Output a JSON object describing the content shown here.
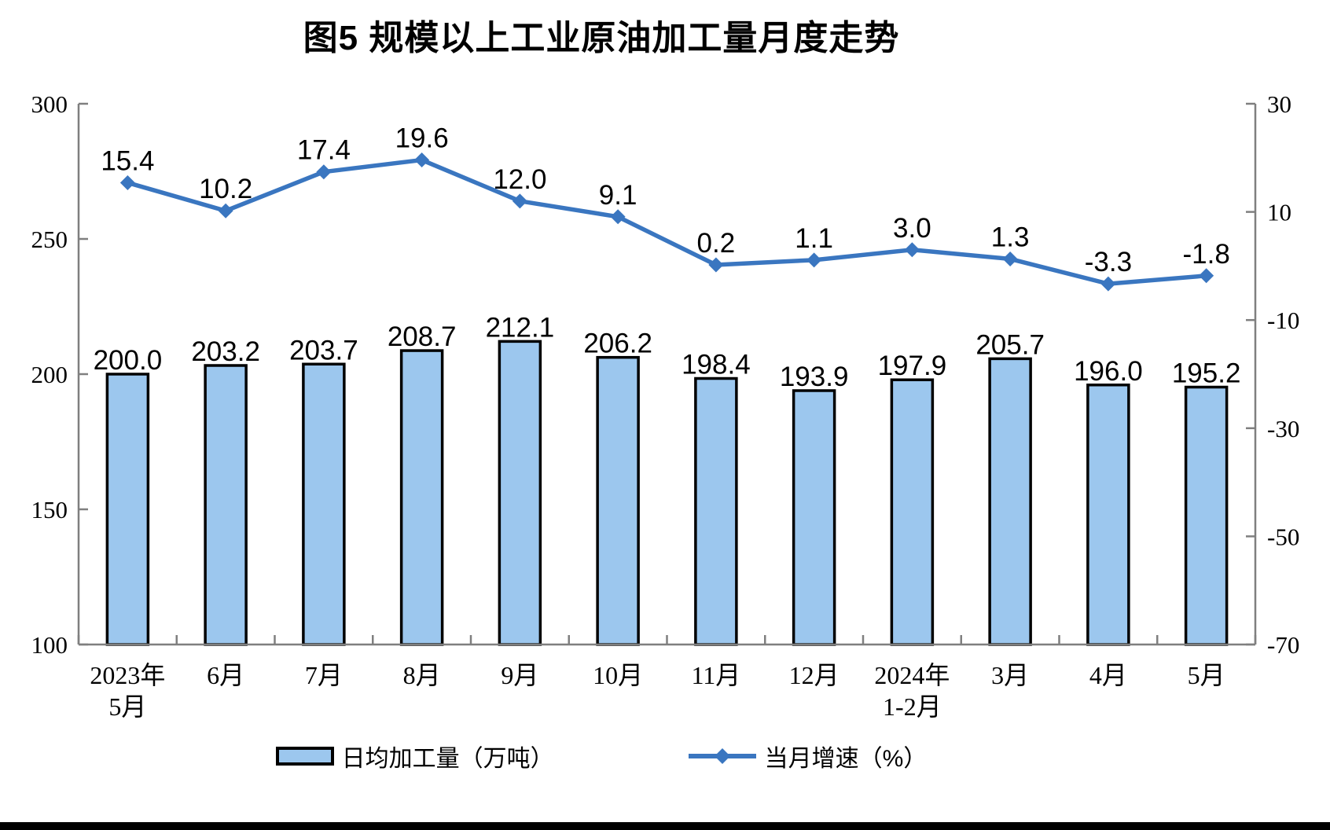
{
  "chart_data": {
    "type": "combo-bar-line",
    "title": "图5  规模以上工业原油加工量月度走势",
    "categories": [
      [
        "2023年",
        "5月"
      ],
      [
        "6月"
      ],
      [
        "7月"
      ],
      [
        "8月"
      ],
      [
        "9月"
      ],
      [
        "10月"
      ],
      [
        "11月"
      ],
      [
        "12月"
      ],
      [
        "2024年",
        "1-2月"
      ],
      [
        "3月"
      ],
      [
        "4月"
      ],
      [
        "5月"
      ]
    ],
    "series": [
      {
        "name": "日均加工量（万吨）",
        "type": "bar",
        "axis": "left",
        "values": [
          200.0,
          203.2,
          203.7,
          208.7,
          212.1,
          206.2,
          198.4,
          193.9,
          197.9,
          205.7,
          196.0,
          195.2
        ],
        "labels": [
          "200.0",
          "203.2",
          "203.7",
          "208.7",
          "212.1",
          "206.2",
          "198.4",
          "193.9",
          "197.9",
          "205.7",
          "196.0",
          "195.2"
        ],
        "fill": "#9CC7EE",
        "stroke": "#000000"
      },
      {
        "name": "当月增速（%）",
        "type": "line",
        "axis": "right",
        "values": [
          15.4,
          10.2,
          17.4,
          19.6,
          12.0,
          9.1,
          0.2,
          1.1,
          3.0,
          1.3,
          -3.3,
          -1.8
        ],
        "labels": [
          "15.4",
          "10.2",
          "17.4",
          "19.6",
          "12.0",
          "9.1",
          "0.2",
          "1.1",
          "3.0",
          "1.3",
          "-3.3",
          "-1.8"
        ],
        "color": "#3A76C0"
      }
    ],
    "left_axis": {
      "min": 100,
      "max": 300,
      "ticks": [
        300,
        250,
        200,
        150,
        100
      ],
      "tick_labels": [
        "300",
        "250",
        "200",
        "150",
        "100"
      ]
    },
    "right_axis": {
      "min": -70,
      "max": 30,
      "ticks": [
        30,
        10,
        -10,
        -30,
        -50,
        -70
      ],
      "tick_labels": [
        "30",
        "10",
        "-10",
        "-30",
        "-50",
        "-70"
      ]
    },
    "legend_position": "bottom",
    "grid": false,
    "colors": {
      "bar_fill": "#9CC7EE",
      "bar_border": "#000000",
      "line": "#3A76C0",
      "axis": "#7F7F7F",
      "label": "#000000"
    }
  }
}
